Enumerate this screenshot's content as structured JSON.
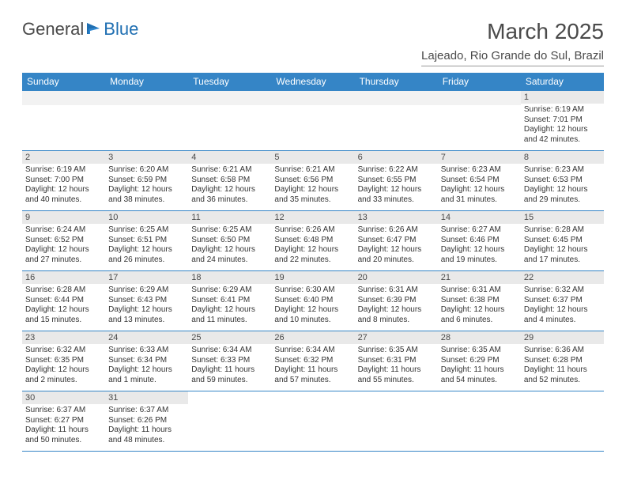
{
  "logo": {
    "text_a": "General",
    "text_b": "Blue",
    "flag_color": "#1f6fb2",
    "text_color": "#4a4a4a"
  },
  "title": "March 2025",
  "location": "Lajeado, Rio Grande do Sul, Brazil",
  "header_bg": "#3585c6",
  "header_text": "#ffffff",
  "border_color": "#3585c6",
  "daynum_bg": "#e9e9e9",
  "blank_bg": "#f2f2f2",
  "weekdays": [
    "Sunday",
    "Monday",
    "Tuesday",
    "Wednesday",
    "Thursday",
    "Friday",
    "Saturday"
  ],
  "weeks": [
    [
      null,
      null,
      null,
      null,
      null,
      null,
      {
        "n": "1",
        "sr": "Sunrise: 6:19 AM",
        "ss": "Sunset: 7:01 PM",
        "dl": "Daylight: 12 hours and 42 minutes."
      }
    ],
    [
      {
        "n": "2",
        "sr": "Sunrise: 6:19 AM",
        "ss": "Sunset: 7:00 PM",
        "dl": "Daylight: 12 hours and 40 minutes."
      },
      {
        "n": "3",
        "sr": "Sunrise: 6:20 AM",
        "ss": "Sunset: 6:59 PM",
        "dl": "Daylight: 12 hours and 38 minutes."
      },
      {
        "n": "4",
        "sr": "Sunrise: 6:21 AM",
        "ss": "Sunset: 6:58 PM",
        "dl": "Daylight: 12 hours and 36 minutes."
      },
      {
        "n": "5",
        "sr": "Sunrise: 6:21 AM",
        "ss": "Sunset: 6:56 PM",
        "dl": "Daylight: 12 hours and 35 minutes."
      },
      {
        "n": "6",
        "sr": "Sunrise: 6:22 AM",
        "ss": "Sunset: 6:55 PM",
        "dl": "Daylight: 12 hours and 33 minutes."
      },
      {
        "n": "7",
        "sr": "Sunrise: 6:23 AM",
        "ss": "Sunset: 6:54 PM",
        "dl": "Daylight: 12 hours and 31 minutes."
      },
      {
        "n": "8",
        "sr": "Sunrise: 6:23 AM",
        "ss": "Sunset: 6:53 PM",
        "dl": "Daylight: 12 hours and 29 minutes."
      }
    ],
    [
      {
        "n": "9",
        "sr": "Sunrise: 6:24 AM",
        "ss": "Sunset: 6:52 PM",
        "dl": "Daylight: 12 hours and 27 minutes."
      },
      {
        "n": "10",
        "sr": "Sunrise: 6:25 AM",
        "ss": "Sunset: 6:51 PM",
        "dl": "Daylight: 12 hours and 26 minutes."
      },
      {
        "n": "11",
        "sr": "Sunrise: 6:25 AM",
        "ss": "Sunset: 6:50 PM",
        "dl": "Daylight: 12 hours and 24 minutes."
      },
      {
        "n": "12",
        "sr": "Sunrise: 6:26 AM",
        "ss": "Sunset: 6:48 PM",
        "dl": "Daylight: 12 hours and 22 minutes."
      },
      {
        "n": "13",
        "sr": "Sunrise: 6:26 AM",
        "ss": "Sunset: 6:47 PM",
        "dl": "Daylight: 12 hours and 20 minutes."
      },
      {
        "n": "14",
        "sr": "Sunrise: 6:27 AM",
        "ss": "Sunset: 6:46 PM",
        "dl": "Daylight: 12 hours and 19 minutes."
      },
      {
        "n": "15",
        "sr": "Sunrise: 6:28 AM",
        "ss": "Sunset: 6:45 PM",
        "dl": "Daylight: 12 hours and 17 minutes."
      }
    ],
    [
      {
        "n": "16",
        "sr": "Sunrise: 6:28 AM",
        "ss": "Sunset: 6:44 PM",
        "dl": "Daylight: 12 hours and 15 minutes."
      },
      {
        "n": "17",
        "sr": "Sunrise: 6:29 AM",
        "ss": "Sunset: 6:43 PM",
        "dl": "Daylight: 12 hours and 13 minutes."
      },
      {
        "n": "18",
        "sr": "Sunrise: 6:29 AM",
        "ss": "Sunset: 6:41 PM",
        "dl": "Daylight: 12 hours and 11 minutes."
      },
      {
        "n": "19",
        "sr": "Sunrise: 6:30 AM",
        "ss": "Sunset: 6:40 PM",
        "dl": "Daylight: 12 hours and 10 minutes."
      },
      {
        "n": "20",
        "sr": "Sunrise: 6:31 AM",
        "ss": "Sunset: 6:39 PM",
        "dl": "Daylight: 12 hours and 8 minutes."
      },
      {
        "n": "21",
        "sr": "Sunrise: 6:31 AM",
        "ss": "Sunset: 6:38 PM",
        "dl": "Daylight: 12 hours and 6 minutes."
      },
      {
        "n": "22",
        "sr": "Sunrise: 6:32 AM",
        "ss": "Sunset: 6:37 PM",
        "dl": "Daylight: 12 hours and 4 minutes."
      }
    ],
    [
      {
        "n": "23",
        "sr": "Sunrise: 6:32 AM",
        "ss": "Sunset: 6:35 PM",
        "dl": "Daylight: 12 hours and 2 minutes."
      },
      {
        "n": "24",
        "sr": "Sunrise: 6:33 AM",
        "ss": "Sunset: 6:34 PM",
        "dl": "Daylight: 12 hours and 1 minute."
      },
      {
        "n": "25",
        "sr": "Sunrise: 6:34 AM",
        "ss": "Sunset: 6:33 PM",
        "dl": "Daylight: 11 hours and 59 minutes."
      },
      {
        "n": "26",
        "sr": "Sunrise: 6:34 AM",
        "ss": "Sunset: 6:32 PM",
        "dl": "Daylight: 11 hours and 57 minutes."
      },
      {
        "n": "27",
        "sr": "Sunrise: 6:35 AM",
        "ss": "Sunset: 6:31 PM",
        "dl": "Daylight: 11 hours and 55 minutes."
      },
      {
        "n": "28",
        "sr": "Sunrise: 6:35 AM",
        "ss": "Sunset: 6:29 PM",
        "dl": "Daylight: 11 hours and 54 minutes."
      },
      {
        "n": "29",
        "sr": "Sunrise: 6:36 AM",
        "ss": "Sunset: 6:28 PM",
        "dl": "Daylight: 11 hours and 52 minutes."
      }
    ],
    [
      {
        "n": "30",
        "sr": "Sunrise: 6:37 AM",
        "ss": "Sunset: 6:27 PM",
        "dl": "Daylight: 11 hours and 50 minutes."
      },
      {
        "n": "31",
        "sr": "Sunrise: 6:37 AM",
        "ss": "Sunset: 6:26 PM",
        "dl": "Daylight: 11 hours and 48 minutes."
      },
      null,
      null,
      null,
      null,
      null
    ]
  ]
}
